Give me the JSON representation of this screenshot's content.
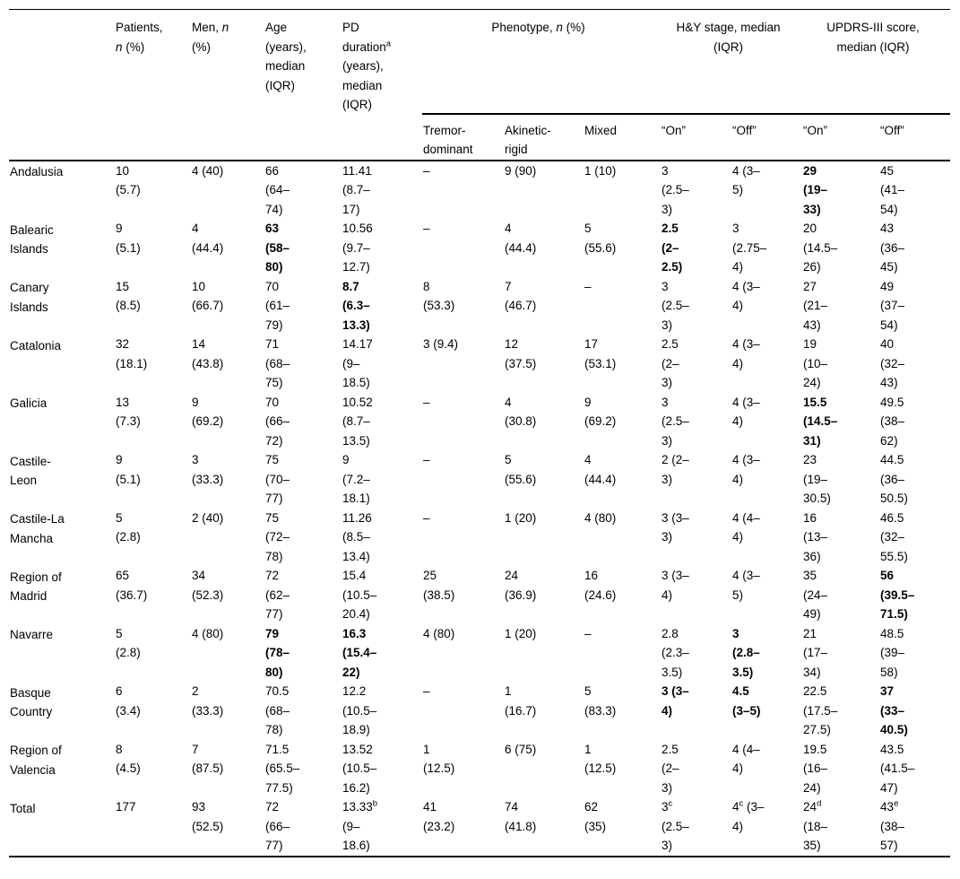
{
  "table": {
    "header": {
      "stub_headers": [
        "",
        "Patients,\n_n_ (%)",
        "Men, _n_\n(%)",
        "Age\n(years),\nmedian\n(IQR)",
        "PD\nduration^a\n(years),\nmedian\n(IQR)"
      ],
      "group_headers": [
        {
          "label": "Phenotype, _n_ (%)",
          "span": 3
        },
        {
          "label": "H&Y stage, median\n(IQR)",
          "span": 2
        },
        {
          "label": "UPDRS-III score,\nmedian (IQR)",
          "span": 2
        }
      ],
      "sub_headers": [
        "Tremor-\ndominant",
        "Akinetic-\nrigid",
        "Mixed",
        "“On”",
        "“Off”",
        "“On”",
        "“Off”"
      ]
    },
    "rows": [
      {
        "region": "Andalusia",
        "cells": [
          "10\n(5.7)",
          "4 (40)",
          "66\n(64–\n74)",
          "11.41\n(8.7–\n17)",
          "–",
          "9 (90)",
          "1 (10)",
          "3\n(2.5–\n3)",
          "4 (3–\n5)",
          "**29\n(19–\n33)**",
          "45\n(41–\n54)"
        ]
      },
      {
        "region": "Balearic\nIslands",
        "cells": [
          "9\n(5.1)",
          "4\n(44.4)",
          "**63\n(58–\n80)**",
          "10.56\n(9.7–\n12.7)",
          "–",
          "4\n(44.4)",
          "5\n(55.6)",
          "**2.5\n(2–\n2.5)**",
          "3\n(2.75–\n4)",
          "20\n(14.5–\n26)",
          "43\n(36–\n45)"
        ]
      },
      {
        "region": "Canary\nIslands",
        "cells": [
          "15\n(8.5)",
          "10\n(66.7)",
          "70\n(61–\n79)",
          "**8.7\n(6.3–\n13.3)**",
          "8\n(53.3)",
          "7\n(46.7)",
          "–",
          "3\n(2.5–\n3)",
          "4 (3–\n4)",
          "27\n(21–\n43)",
          "49\n(37–\n54)"
        ]
      },
      {
        "region": "Catalonia",
        "cells": [
          "32\n(18.1)",
          "14\n(43.8)",
          "71\n(68–\n75)",
          "14.17\n(9–\n18.5)",
          "3 (9.4)",
          "12\n(37.5)",
          "17\n(53.1)",
          "2.5\n(2–\n3)",
          "4 (3–\n4)",
          "19\n(10–\n24)",
          "40\n(32–\n43)"
        ]
      },
      {
        "region": "Galicia",
        "cells": [
          "13\n(7.3)",
          "9\n(69.2)",
          "70\n(66–\n72)",
          "10.52\n(8.7–\n13.5)",
          "–",
          "4\n(30.8)",
          "9\n(69.2)",
          "3\n(2.5–\n3)",
          "4 (3–\n4)",
          "**15.5\n(14.5–\n31)**",
          "49.5\n(38–\n62)"
        ]
      },
      {
        "region": "Castile-\nLeon",
        "cells": [
          "9\n(5.1)",
          "3\n(33.3)",
          "75\n(70–\n77)",
          "9\n(7.2–\n18.1)",
          "–",
          "5\n(55.6)",
          "4\n(44.4)",
          "2 (2–\n3)",
          "4 (3–\n4)",
          "23\n(19–\n30.5)",
          "44.5\n(36–\n50.5)"
        ]
      },
      {
        "region": "Castile-La\nMancha",
        "cells": [
          "5\n(2.8)",
          "2 (40)",
          "75\n(72–\n78)",
          "11.26\n(8.5–\n13.4)",
          "–",
          "1 (20)",
          "4 (80)",
          "3 (3–\n3)",
          "4 (4–\n4)",
          "16\n(13–\n36)",
          "46.5\n(32–\n55.5)"
        ]
      },
      {
        "region": "Region of\nMadrid",
        "cells": [
          "65\n(36.7)",
          "34\n(52.3)",
          "72\n(62–\n77)",
          "15.4\n(10.5–\n20.4)",
          "25\n(38.5)",
          "24\n(36.9)",
          "16\n(24.6)",
          "3 (3–\n4)",
          "4 (3–\n5)",
          "35\n(24–\n49)",
          "**56\n(39.5–\n71.5)**"
        ]
      },
      {
        "region": "Navarre",
        "cells": [
          "5\n(2.8)",
          "4 (80)",
          "**79\n(78–\n80)**",
          "**16.3\n(15.4–\n22)**",
          "4 (80)",
          "1 (20)",
          "–",
          "2.8\n(2.3–\n3.5)",
          "**3\n(2.8–\n3.5)**",
          "21\n(17–\n34)",
          "48.5\n(39–\n58)"
        ]
      },
      {
        "region": "Basque\nCountry",
        "cells": [
          "6\n(3.4)",
          "2\n(33.3)",
          "70.5\n(68–\n78)",
          "12.2\n(10.5–\n18.9)",
          "–",
          "1\n(16.7)",
          "5\n(83.3)",
          "**3 (3–\n4)**",
          "**4.5\n(3–5)**",
          "22.5\n(17.5–\n27.5)",
          "**37\n(33–\n40.5)**"
        ]
      },
      {
        "region": "Region of\nValencia",
        "cells": [
          "8\n(4.5)",
          "7\n(87.5)",
          "71.5\n(65.5–\n77.5)",
          "13.52\n(10.5–\n16.2)",
          "1\n(12.5)",
          "6 (75)",
          "1\n(12.5)",
          "2.5\n(2–\n3)",
          "4 (4–\n4)",
          "19.5\n(16–\n24)",
          "43.5\n(41.5–\n47)"
        ]
      },
      {
        "region": "Total",
        "cells": [
          "177",
          "93\n(52.5)",
          "72\n(66–\n77)",
          "13.33^b\n(9–\n18.6)",
          "41\n(23.2)",
          "74\n(41.8)",
          "62\n(35)",
          "3^c\n(2.5–\n3)",
          "4^c (3–\n4)",
          "24^d\n(18–\n35)",
          "43^e\n(38–\n57)"
        ]
      }
    ]
  }
}
